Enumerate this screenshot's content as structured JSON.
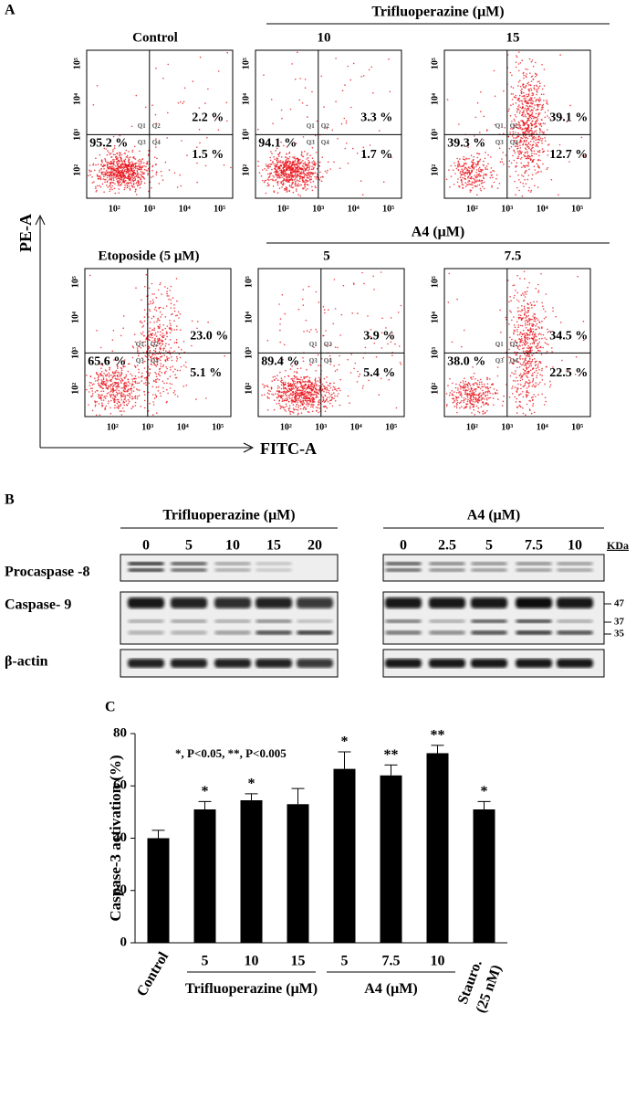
{
  "panel_a": {
    "label": "A",
    "y_axis": "PE-A",
    "x_axis": "FITC-A",
    "ticks": [
      "10²",
      "10³",
      "10⁴",
      "10⁵"
    ],
    "quadrants": [
      "Q1",
      "Q2",
      "Q3",
      "Q4"
    ],
    "groups": [
      "Trifluoperazine (μM)",
      "A4 (μM)"
    ],
    "plots": [
      {
        "title": "Control",
        "q2": "2.2 %",
        "q3": "95.2 %",
        "q4": "1.5 %"
      },
      {
        "title": "10",
        "q2": "3.3 %",
        "q3": "94.1 %",
        "q4": "1.7 %"
      },
      {
        "title": "15",
        "q2": "39.1 %",
        "q3": "39.3 %",
        "q4": "12.7 %"
      },
      {
        "title": "Etoposide (5 μM)",
        "q2": "23.0 %",
        "q3": "65.6 %",
        "q4": "5.1 %"
      },
      {
        "title": "5",
        "q2": "3.9 %",
        "q3": "89.4 %",
        "q4": "5.4 %"
      },
      {
        "title": "7.5",
        "q2": "34.5 %",
        "q3": "38.0 %",
        "q4": "22.5 %"
      }
    ]
  },
  "panel_b": {
    "label": "B",
    "groups": [
      {
        "title": "Trifluoperazine (μM)",
        "lanes": [
          "0",
          "5",
          "10",
          "15",
          "20"
        ]
      },
      {
        "title": "A4 (μM)",
        "lanes": [
          "0",
          "2.5",
          "5",
          "7.5",
          "10"
        ]
      }
    ],
    "rows": [
      "Procaspase -8",
      "Caspase- 9",
      "β-actin"
    ],
    "kda_label": "KDa",
    "markers": [
      "47",
      "37",
      "35"
    ]
  },
  "panel_c": {
    "label": "C"
  },
  "chart_data": {
    "type": "bar",
    "y_label": "Caspase-3 activation (%)",
    "annotation": "*, P<0.05, **, P<0.005",
    "categories": [
      "Control",
      "5",
      "10",
      "15",
      "5",
      "7.5",
      "10",
      "Stauro. (25 nM)"
    ],
    "values": [
      40,
      51,
      54.5,
      53,
      66.5,
      64,
      72.5,
      51
    ],
    "errors": [
      3,
      3,
      2.5,
      6,
      6.5,
      4,
      3,
      3
    ],
    "significance": [
      null,
      "*",
      "*",
      null,
      "*",
      "**",
      "**",
      "*"
    ],
    "groups": [
      {
        "label": "Trifluoperazine (μM)",
        "from": 1,
        "to": 3
      },
      {
        "label": "A4 (μM)",
        "from": 4,
        "to": 6
      }
    ],
    "color": "#000000",
    "ylim": [
      0,
      80
    ],
    "yticks": [
      0,
      20,
      40,
      60,
      80
    ]
  }
}
